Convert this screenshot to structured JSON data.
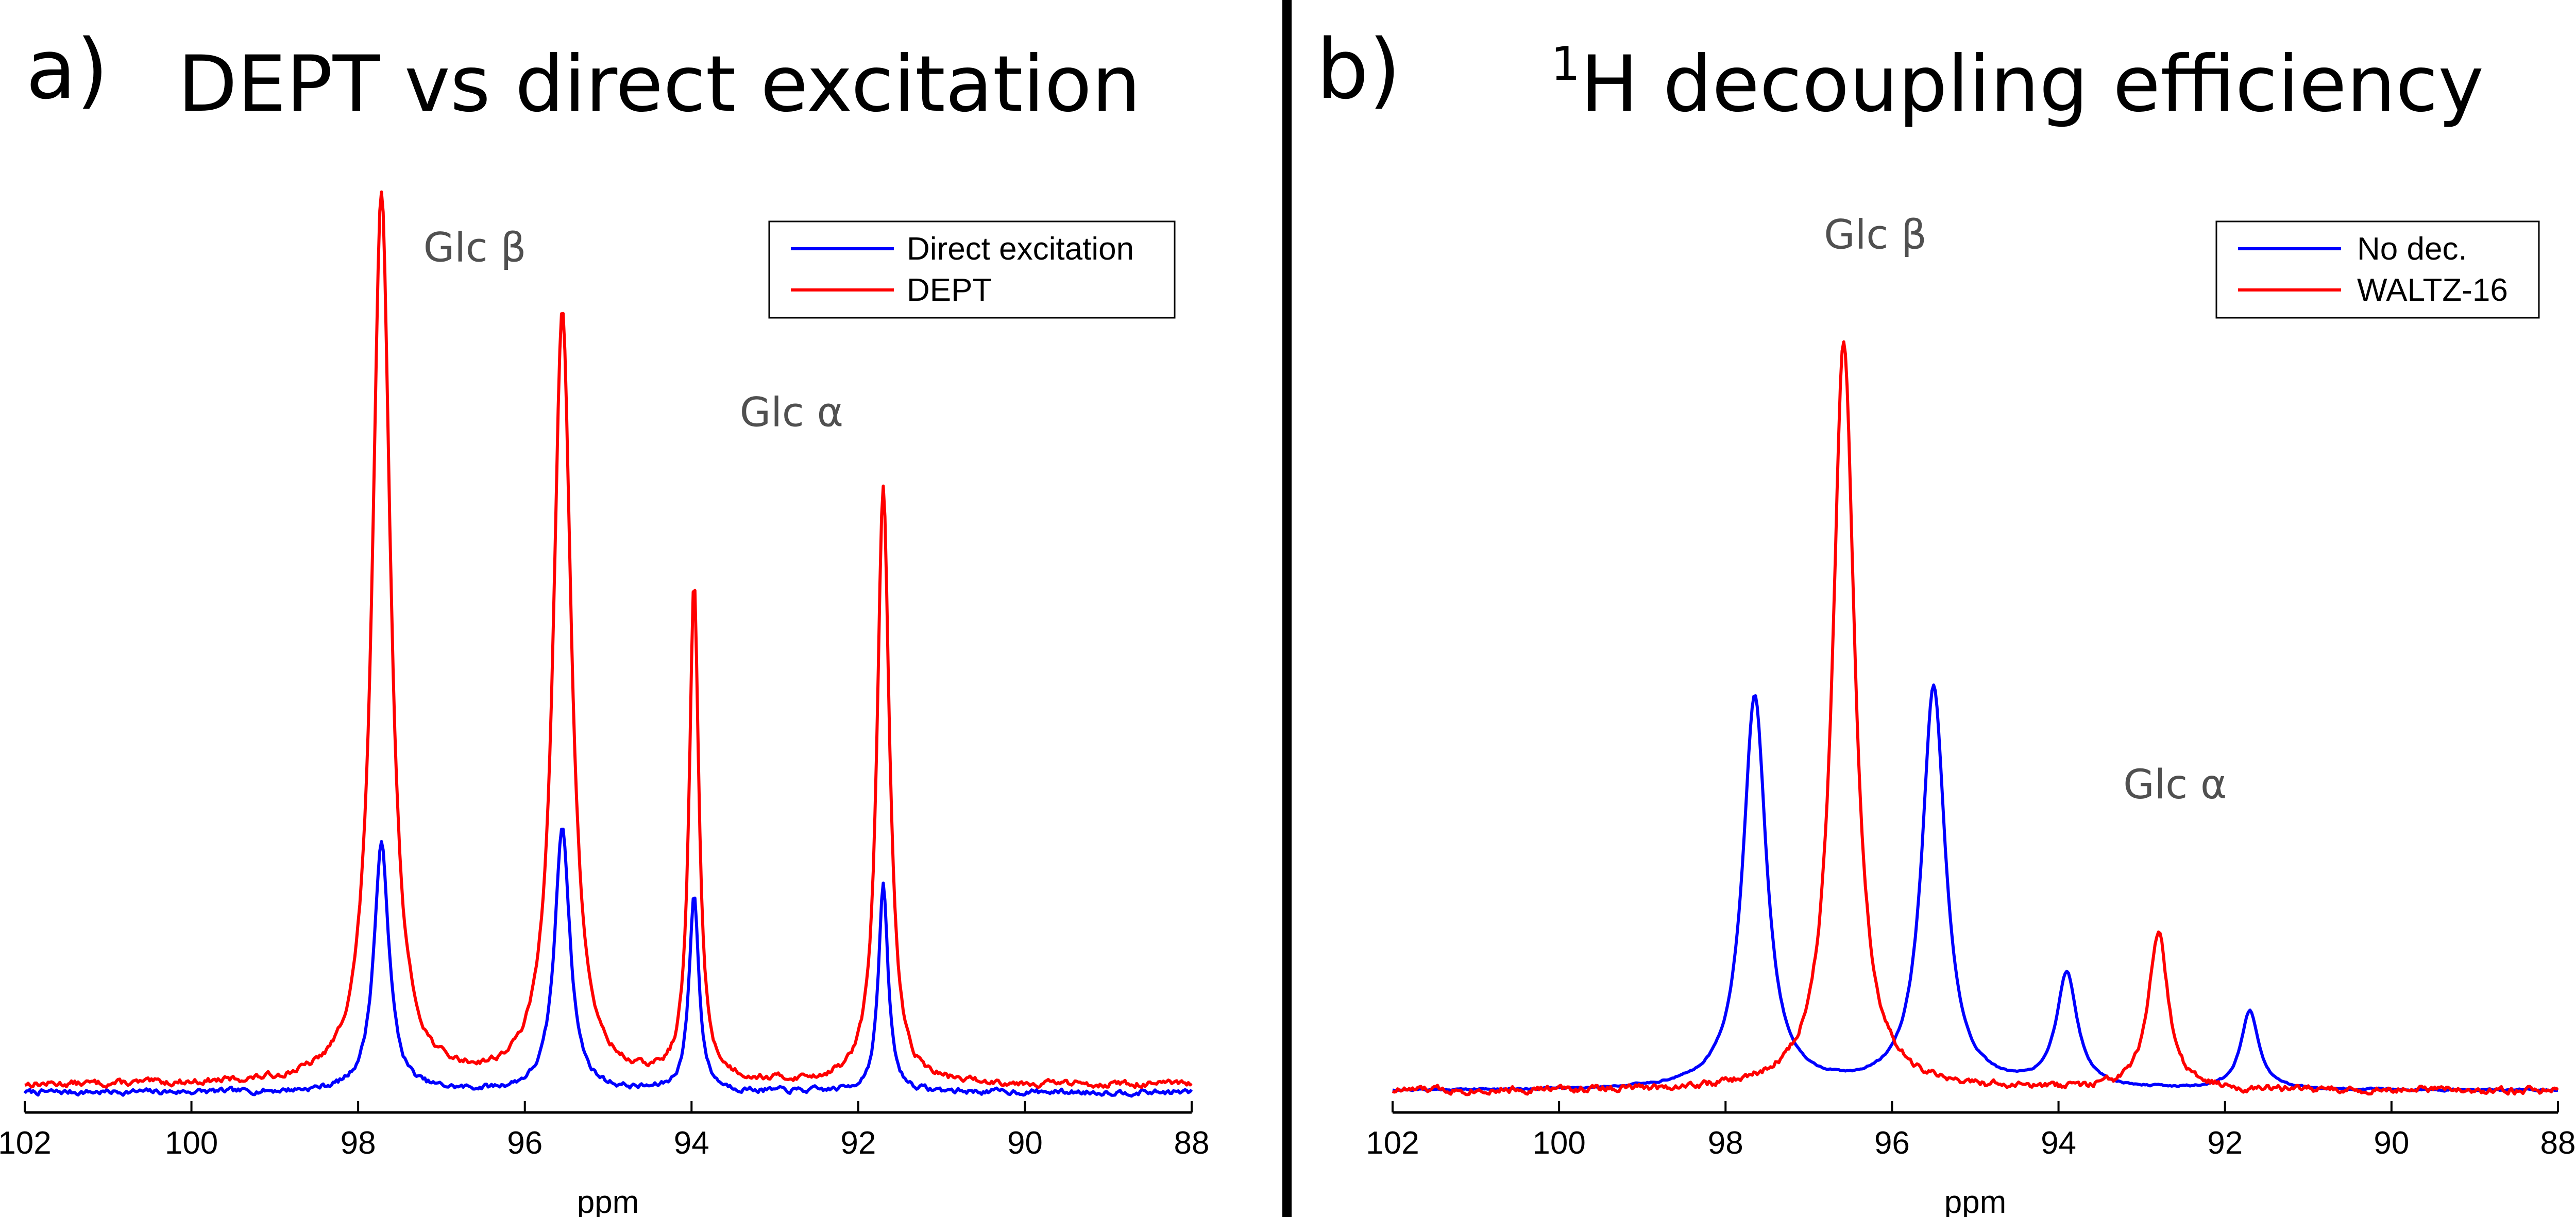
{
  "panels": [
    {
      "letter": "a)",
      "title": "DEPT vs direct excitation",
      "title_sup": "",
      "legend": [
        "Direct excitation",
        "DEPT"
      ],
      "annotations": [
        {
          "text": "Glc β",
          "ppm": 96.6,
          "y": 0.92
        },
        {
          "text": "Glc α",
          "ppm": 92.8,
          "y": 0.74
        }
      ]
    },
    {
      "letter": "b)",
      "title": "H decoupling efficiency",
      "title_sup": "1",
      "legend": [
        "No dec.",
        "WALTZ-16"
      ],
      "annotations": [
        {
          "text": "Glc β",
          "ppm": 96.2,
          "y": 0.97
        },
        {
          "text": "Glc α",
          "ppm": 92.6,
          "y": 0.34
        }
      ]
    }
  ],
  "chart_data": [
    {
      "type": "line",
      "title": "DEPT vs direct excitation",
      "xlabel": "ppm",
      "ylabel": "",
      "xlim": [
        102,
        88
      ],
      "ylim": [
        -0.01,
        1.02
      ],
      "xticks": [
        102,
        100,
        98,
        96,
        94,
        92,
        90,
        88
      ],
      "legend_position": "top-right",
      "series": [
        {
          "name": "Direct excitation",
          "color": "#0000ff",
          "baseline": 0.012,
          "noise": 0.006,
          "seed": 7,
          "peaks": [
            {
              "ppm": 97.72,
              "height": 0.27,
              "width": 0.11
            },
            {
              "ppm": 95.55,
              "height": 0.29,
              "width": 0.11
            },
            {
              "ppm": 93.97,
              "height": 0.215,
              "width": 0.07
            },
            {
              "ppm": 91.7,
              "height": 0.225,
              "width": 0.07
            }
          ]
        },
        {
          "name": "DEPT",
          "color": "#ff0000",
          "baseline": 0.02,
          "noise": 0.007,
          "seed": 13,
          "peaks": [
            {
              "ppm": 97.72,
              "height": 0.97,
              "width": 0.13
            },
            {
              "ppm": 95.55,
              "height": 0.84,
              "width": 0.13
            },
            {
              "ppm": 93.97,
              "height": 0.54,
              "width": 0.07
            },
            {
              "ppm": 91.7,
              "height": 0.65,
              "width": 0.09
            }
          ]
        }
      ]
    },
    {
      "type": "line",
      "title": "1H decoupling efficiency",
      "xlabel": "ppm",
      "ylabel": "",
      "xlim": [
        102,
        88
      ],
      "ylim": [
        -0.02,
        1.06
      ],
      "xticks": [
        102,
        100,
        98,
        96,
        94,
        92,
        90,
        88
      ],
      "legend_position": "top-right",
      "series": [
        {
          "name": "No dec.",
          "color": "#0000ff",
          "baseline": 0.005,
          "noise": 0.002,
          "seed": 21,
          "peaks": [
            {
              "ppm": 97.65,
              "height": 0.45,
              "width": 0.17
            },
            {
              "ppm": 95.5,
              "height": 0.46,
              "width": 0.17
            },
            {
              "ppm": 93.9,
              "height": 0.13,
              "width": 0.15
            },
            {
              "ppm": 91.7,
              "height": 0.09,
              "width": 0.13
            }
          ]
        },
        {
          "name": "WALTZ-16",
          "color": "#ff0000",
          "baseline": 0.005,
          "noise": 0.008,
          "seed": 33,
          "peaks": [
            {
              "ppm": 96.58,
              "height": 0.86,
              "width": 0.16
            },
            {
              "ppm": 92.8,
              "height": 0.18,
              "width": 0.14
            }
          ]
        }
      ]
    }
  ]
}
